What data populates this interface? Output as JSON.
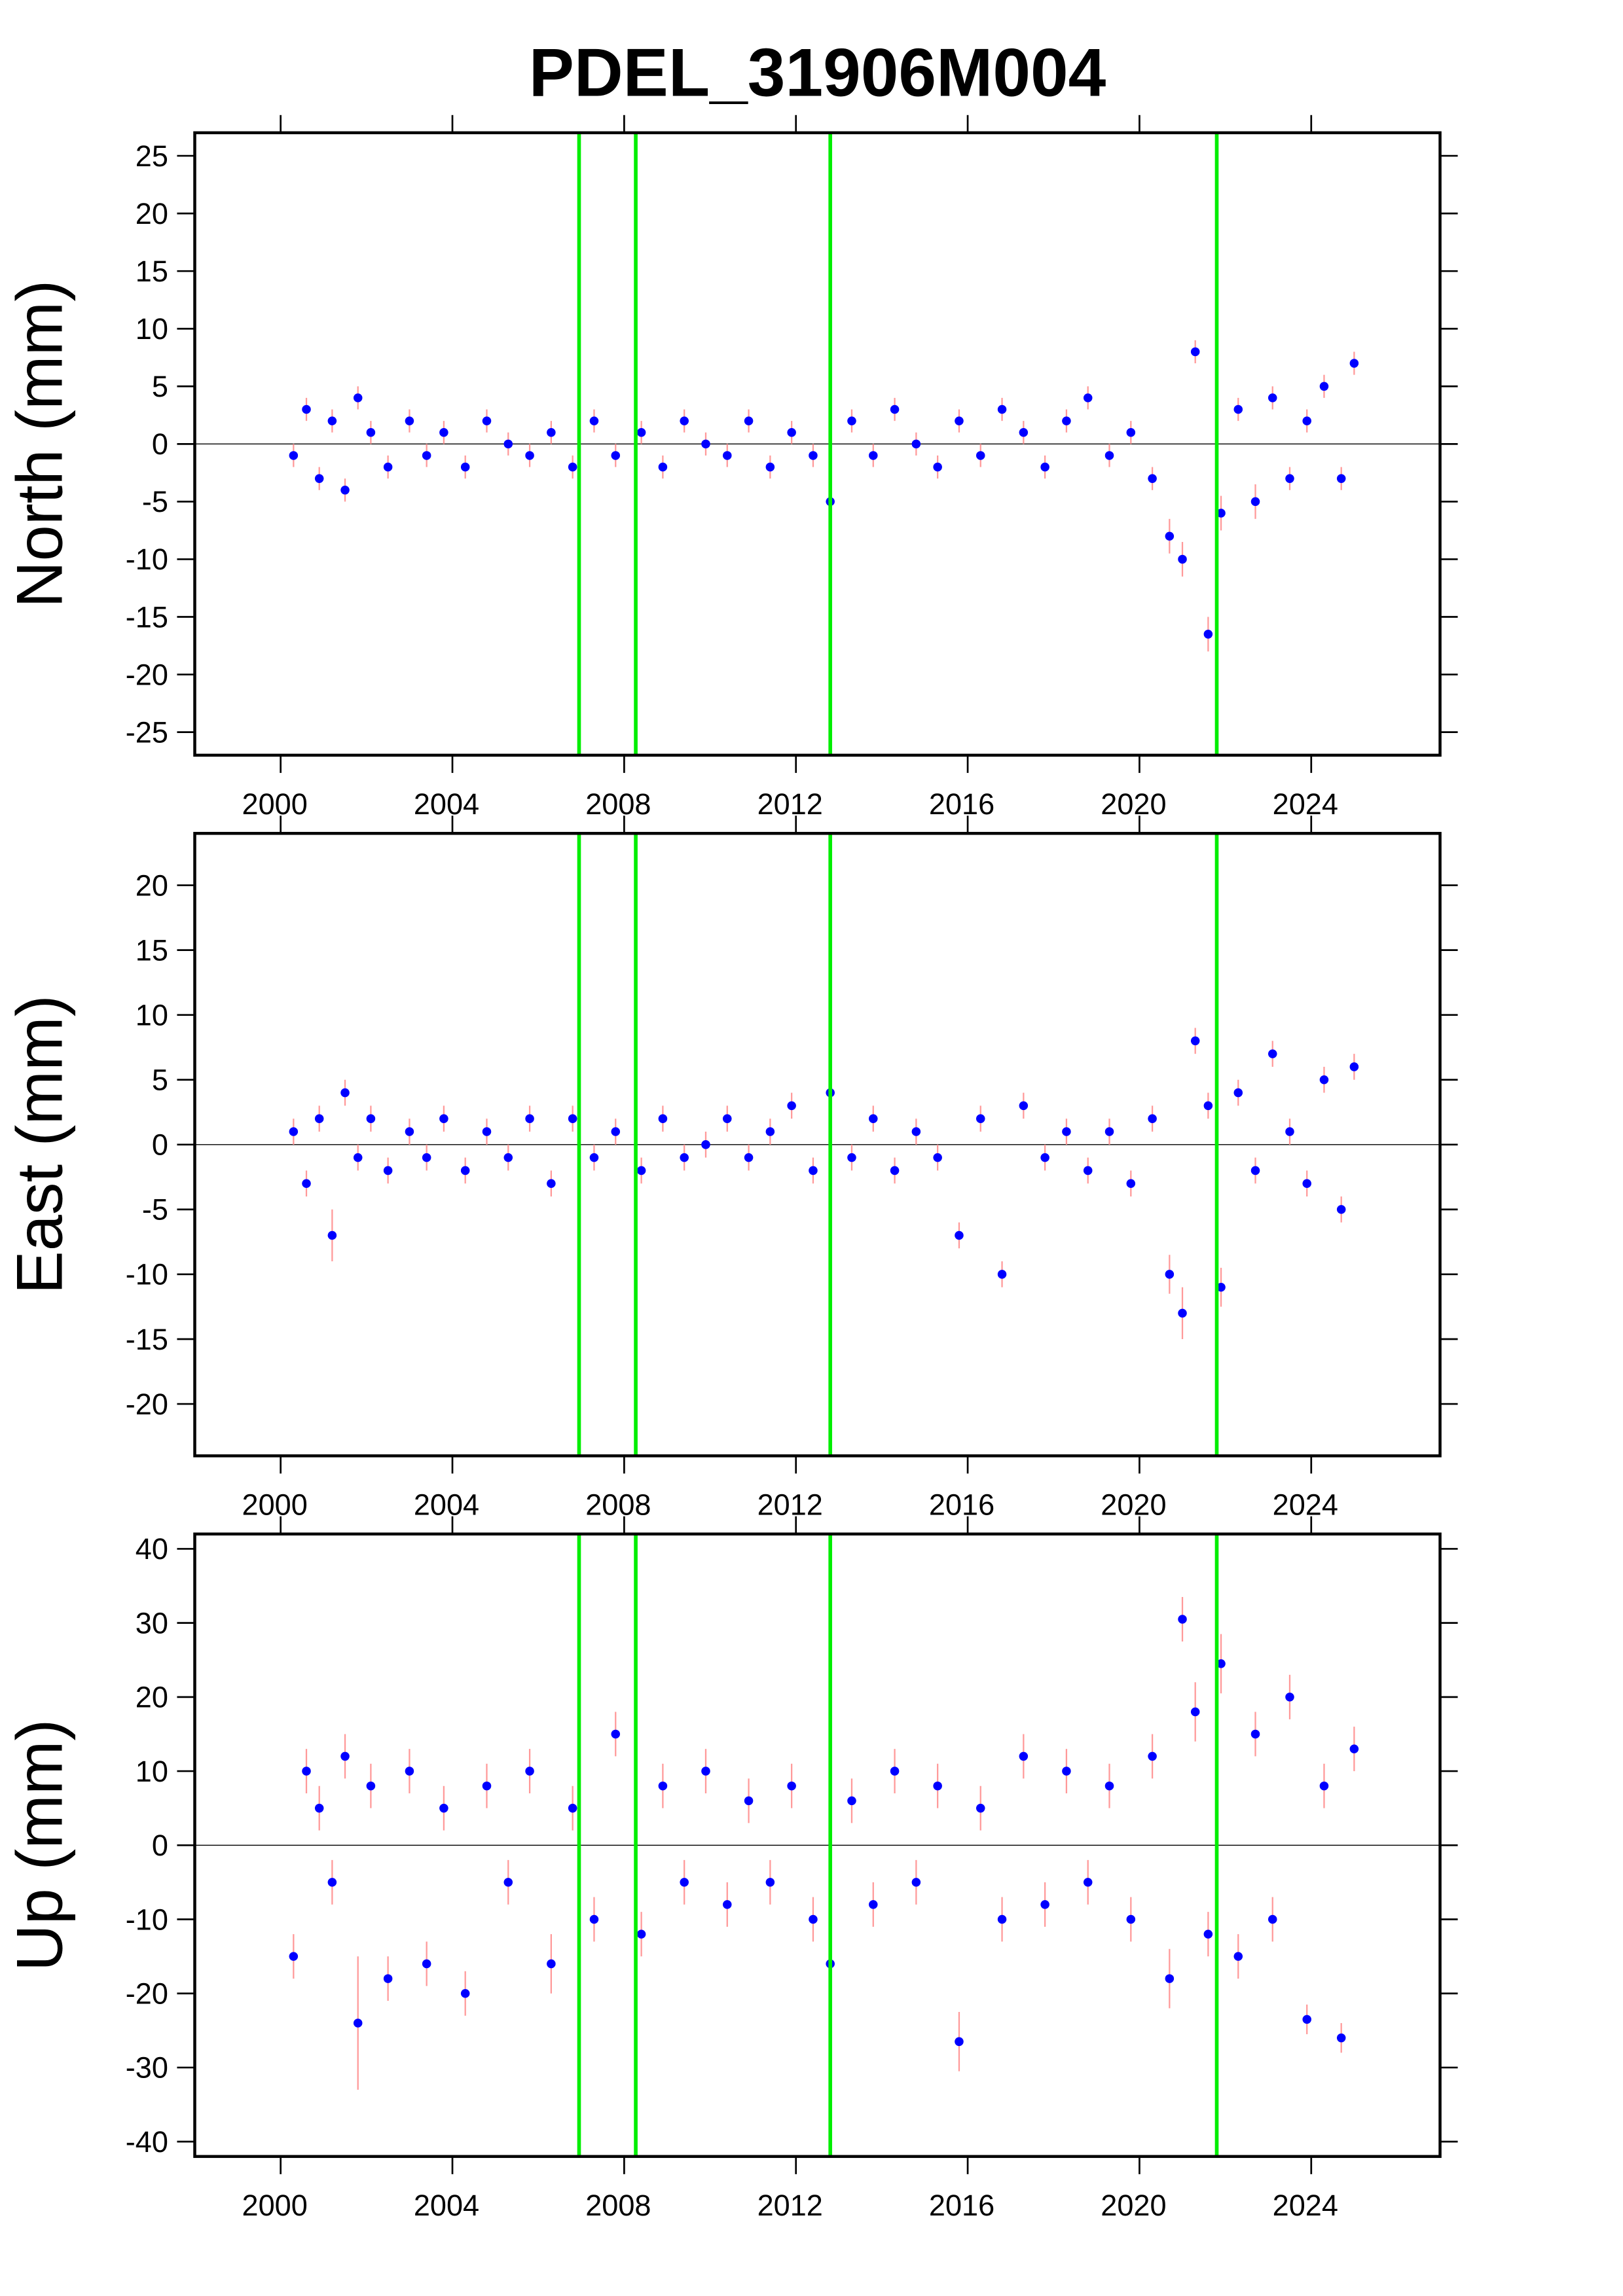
{
  "title": "PDEL_31906M004",
  "chart_data": [
    {
      "type": "scatter",
      "ylabel": "North (mm)",
      "xlim": [
        1998,
        2027
      ],
      "xticks": [
        2000,
        2004,
        2008,
        2012,
        2016,
        2020,
        2024
      ],
      "ylim": [
        -27,
        27
      ],
      "yticks": [
        -25,
        -20,
        -15,
        -10,
        -5,
        0,
        5,
        10,
        15,
        20,
        25
      ],
      "vlines": [
        2006.95,
        2008.27,
        2012.8,
        2021.8
      ],
      "vline_color": "#00ee00",
      "error_color": "#ff9999",
      "x": [
        2000.3,
        2000.6,
        2000.9,
        2001.2,
        2001.5,
        2001.8,
        2002.1,
        2002.5,
        2003.0,
        2003.4,
        2003.8,
        2004.3,
        2004.8,
        2005.3,
        2005.8,
        2006.3,
        2006.8,
        2007.3,
        2007.8,
        2008.4,
        2008.9,
        2009.4,
        2009.9,
        2010.4,
        2010.9,
        2011.4,
        2011.9,
        2012.4,
        2012.8,
        2013.3,
        2013.8,
        2014.3,
        2014.8,
        2015.3,
        2015.8,
        2016.3,
        2016.8,
        2017.3,
        2017.8,
        2018.3,
        2018.8,
        2019.3,
        2019.8,
        2020.3,
        2020.7,
        2021.0,
        2021.3,
        2021.6,
        2021.9,
        2022.3,
        2022.7,
        2023.1,
        2023.5,
        2023.9,
        2024.3,
        2024.7,
        2025.0
      ],
      "series": [
        {
          "color": "#0000ff",
          "values": [
            -1,
            3,
            -3,
            2,
            -4,
            4,
            1,
            -2,
            2,
            -1,
            1,
            -2,
            2,
            0,
            -1,
            1,
            -2,
            2,
            -1,
            1,
            -2,
            2,
            0,
            -1,
            2,
            -2,
            1,
            -1,
            -5,
            2,
            -1,
            3,
            0,
            -2,
            2,
            -1,
            3,
            1,
            -2,
            2,
            4,
            -1,
            1,
            -3,
            -8,
            -10,
            8,
            -16.5,
            -6,
            3,
            -5,
            4,
            -3,
            2,
            5,
            -3,
            7
          ],
          "errors": [
            1,
            1,
            1,
            1,
            1,
            1,
            1,
            1,
            1,
            1,
            1,
            1,
            1,
            1,
            1,
            1,
            1,
            1,
            1,
            1,
            1,
            1,
            1,
            1,
            1,
            1,
            1,
            1,
            1,
            1,
            1,
            1,
            1,
            1,
            1,
            1,
            1,
            1,
            1,
            1,
            1,
            1,
            1,
            1,
            1.5,
            1.5,
            1,
            1.5,
            1.5,
            1,
            1.5,
            1,
            1,
            1,
            1,
            1,
            1
          ]
        }
      ]
    },
    {
      "type": "scatter",
      "ylabel": "East (mm)",
      "xlim": [
        1998,
        2027
      ],
      "xticks": [
        2000,
        2004,
        2008,
        2012,
        2016,
        2020,
        2024
      ],
      "ylim": [
        -24,
        24
      ],
      "yticks": [
        -20,
        -15,
        -10,
        -5,
        0,
        5,
        10,
        15,
        20
      ],
      "vlines": [
        2006.95,
        2008.27,
        2012.8,
        2021.8
      ],
      "vline_color": "#00ee00",
      "error_color": "#ff9999",
      "x": [
        2000.3,
        2000.6,
        2000.9,
        2001.2,
        2001.5,
        2001.8,
        2002.1,
        2002.5,
        2003.0,
        2003.4,
        2003.8,
        2004.3,
        2004.8,
        2005.3,
        2005.8,
        2006.3,
        2006.8,
        2007.3,
        2007.8,
        2008.4,
        2008.9,
        2009.4,
        2009.9,
        2010.4,
        2010.9,
        2011.4,
        2011.9,
        2012.4,
        2012.8,
        2013.3,
        2013.8,
        2014.3,
        2014.8,
        2015.3,
        2015.8,
        2016.3,
        2016.8,
        2017.3,
        2017.8,
        2018.3,
        2018.8,
        2019.3,
        2019.8,
        2020.3,
        2020.7,
        2021.0,
        2021.3,
        2021.6,
        2021.9,
        2022.3,
        2022.7,
        2023.1,
        2023.5,
        2023.9,
        2024.3,
        2024.7,
        2025.0
      ],
      "series": [
        {
          "color": "#0000ff",
          "values": [
            1,
            -3,
            2,
            -7,
            4,
            -1,
            2,
            -2,
            1,
            -1,
            2,
            -2,
            1,
            -1,
            2,
            -3,
            2,
            -1,
            1,
            -2,
            2,
            -1,
            0,
            2,
            -1,
            1,
            3,
            -2,
            4,
            -1,
            2,
            -2,
            1,
            -1,
            -7,
            2,
            -10,
            3,
            -1,
            1,
            -2,
            1,
            -3,
            2,
            -10,
            -13,
            8,
            3,
            -11,
            4,
            -2,
            7,
            1,
            -3,
            5,
            -5,
            6
          ],
          "errors": [
            1,
            1,
            1,
            2,
            1,
            1,
            1,
            1,
            1,
            1,
            1,
            1,
            1,
            1,
            1,
            1,
            1,
            1,
            1,
            1,
            1,
            1,
            1,
            1,
            1,
            1,
            1,
            1,
            1,
            1,
            1,
            1,
            1,
            1,
            1,
            1,
            1,
            1,
            1,
            1,
            1,
            1,
            1,
            1,
            1.5,
            2,
            1,
            1,
            1.5,
            1,
            1,
            1,
            1,
            1,
            1,
            1,
            1
          ]
        }
      ]
    },
    {
      "type": "scatter",
      "ylabel": "Up (mm)",
      "xlim": [
        1998,
        2027
      ],
      "xticks": [
        2000,
        2004,
        2008,
        2012,
        2016,
        2020,
        2024
      ],
      "ylim": [
        -42,
        42
      ],
      "yticks": [
        -40,
        -30,
        -20,
        -10,
        0,
        10,
        20,
        30,
        40
      ],
      "vlines": [
        2006.95,
        2008.27,
        2012.8,
        2021.8
      ],
      "vline_color": "#00ee00",
      "error_color": "#ff9999",
      "x": [
        2000.3,
        2000.6,
        2000.9,
        2001.2,
        2001.5,
        2001.8,
        2002.1,
        2002.5,
        2003.0,
        2003.4,
        2003.8,
        2004.3,
        2004.8,
        2005.3,
        2005.8,
        2006.3,
        2006.8,
        2007.3,
        2007.8,
        2008.4,
        2008.9,
        2009.4,
        2009.9,
        2010.4,
        2010.9,
        2011.4,
        2011.9,
        2012.4,
        2012.8,
        2013.3,
        2013.8,
        2014.3,
        2014.8,
        2015.3,
        2015.8,
        2016.3,
        2016.8,
        2017.3,
        2017.8,
        2018.3,
        2018.8,
        2019.3,
        2019.8,
        2020.3,
        2020.7,
        2021.0,
        2021.3,
        2021.6,
        2021.9,
        2022.3,
        2022.7,
        2023.1,
        2023.5,
        2023.9,
        2024.3,
        2024.7,
        2025.0
      ],
      "series": [
        {
          "color": "#0000ff",
          "values": [
            -15,
            10,
            5,
            -5,
            12,
            -24,
            8,
            -18,
            10,
            -16,
            5,
            -20,
            8,
            -5,
            10,
            -16,
            5,
            -10,
            15,
            -12,
            8,
            -5,
            10,
            -8,
            6,
            -5,
            8,
            -10,
            -16,
            6,
            -8,
            10,
            -5,
            8,
            -26.5,
            5,
            -10,
            12,
            -8,
            10,
            -5,
            8,
            -10,
            12,
            -18,
            30.5,
            18,
            -12,
            24.5,
            -15,
            15,
            -10,
            20,
            -23.5,
            8,
            -26,
            13
          ],
          "errors": [
            3,
            3,
            3,
            3,
            3,
            9,
            3,
            3,
            3,
            3,
            3,
            3,
            3,
            3,
            3,
            4,
            3,
            3,
            3,
            3,
            3,
            3,
            3,
            3,
            3,
            3,
            3,
            3,
            3,
            3,
            3,
            3,
            3,
            3,
            4,
            3,
            3,
            3,
            3,
            3,
            3,
            3,
            3,
            3,
            4,
            3,
            4,
            3,
            4,
            3,
            3,
            3,
            3,
            2,
            3,
            2,
            3
          ]
        }
      ]
    }
  ]
}
